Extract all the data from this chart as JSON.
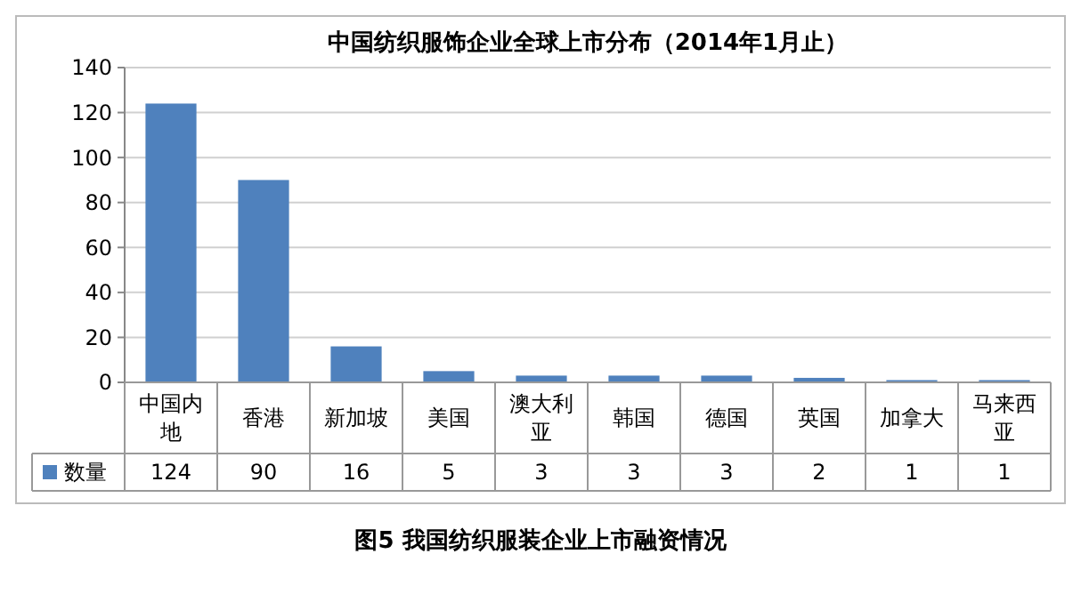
{
  "chart_data": {
    "type": "bar",
    "title": "中国纺织服饰企业全球上市分布（2014年1月止）",
    "categories": [
      "中国内地",
      "香港",
      "新加坡",
      "美国",
      "澳大利亚",
      "韩国",
      "德国",
      "英国",
      "加拿大",
      "马来西亚"
    ],
    "series": [
      {
        "name": "数量",
        "color": "#4f81bd",
        "values": [
          124,
          90,
          16,
          5,
          3,
          3,
          3,
          2,
          1,
          1
        ]
      }
    ],
    "ylim": [
      0,
      140
    ],
    "yticks": [
      0,
      20,
      40,
      60,
      80,
      100,
      120,
      140
    ],
    "grid": "y",
    "data_labels": true,
    "legend": "bottom left",
    "annotations": [
      "图5 我国纺织服装企业上市融资情况"
    ]
  }
}
